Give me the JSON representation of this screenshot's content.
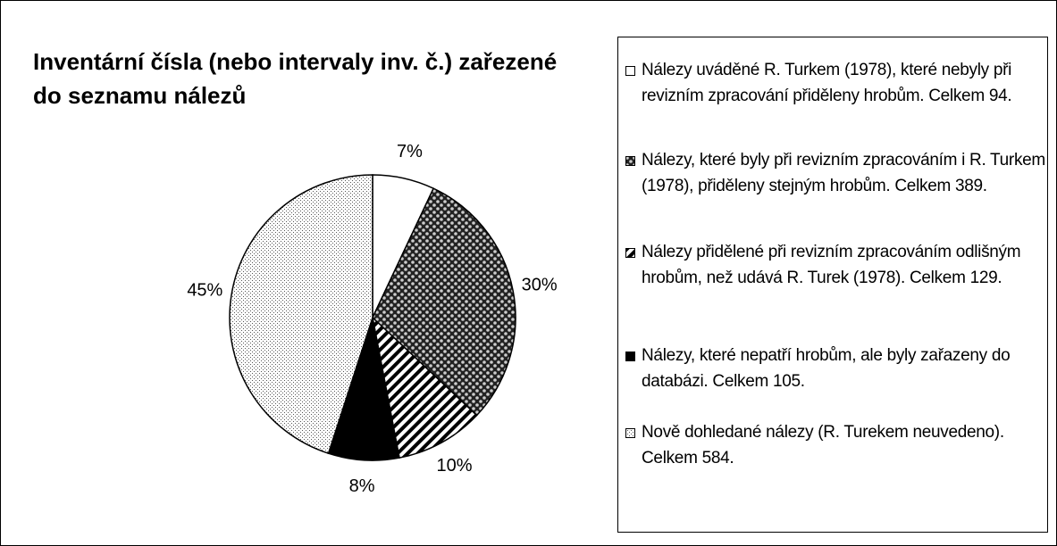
{
  "chart_data": {
    "type": "pie",
    "title": "Inventární čísla (nebo intervaly inv. č.) zařezené do seznamu nálezů",
    "categories": [
      "Nálezy uváděné  R. Turkem (1978), které nebyly při revizním zpracování přiděleny hrobům. Celkem 94.",
      "Nálezy, které byly  při revizním zpracováním i R. Turkem (1978),  přiděleny stejným hrobům. Celkem 389.",
      "Nálezy přidělené při revizním zpracováním odlišným hrobům, než udává R. Turek (1978). Celkem 129.",
      "Nálezy, které nepatří hrobům, ale byly zařazeny do databázi. Celkem 105.",
      "Nově dohledané nálezy (R. Turekem neuvedeno). Celkem 584."
    ],
    "values": [
      7,
      30,
      10,
      8,
      45
    ],
    "value_labels": [
      "7%",
      "30%",
      "10%",
      "8%",
      "45%"
    ],
    "legend": "right"
  }
}
